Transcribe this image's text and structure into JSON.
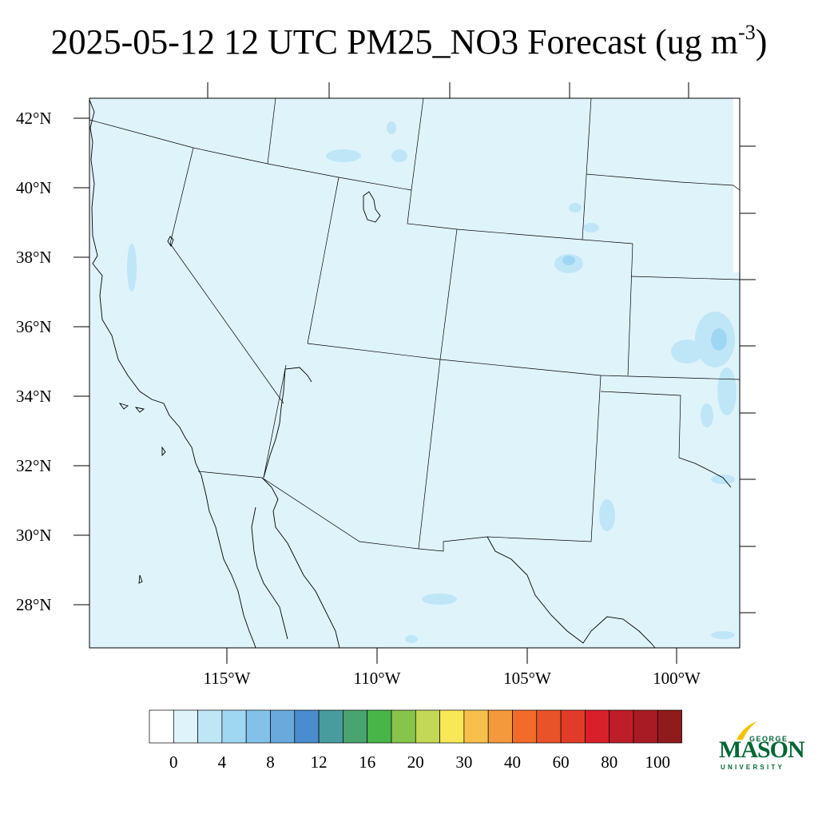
{
  "title": {
    "text": "2025-05-12 12 UTC PM25_NO3 Forecast (ug m",
    "superscript": "-3",
    "close": ")"
  },
  "map": {
    "fill_color": "#dff3fb",
    "lat_labels": [
      "42°N",
      "40°N",
      "38°N",
      "36°N",
      "34°N",
      "32°N",
      "30°N",
      "28°N"
    ],
    "lon_labels": [
      "115°W",
      "110°W",
      "105°W",
      "100°W"
    ]
  },
  "colorbar": {
    "colors": [
      "#ffffff",
      "#dff3fb",
      "#bfe6f7",
      "#9fd7f3",
      "#83c1e8",
      "#69a9dc",
      "#4a8ccd",
      "#489c9e",
      "#49a46f",
      "#47b548",
      "#86c44b",
      "#c2d856",
      "#f8e857",
      "#f7c04b",
      "#f49a3c",
      "#f26b29",
      "#e85329",
      "#e13b29",
      "#d81f2a",
      "#be1d2a",
      "#a81b25",
      "#8f1b1d"
    ],
    "tick_labels": [
      "0",
      "4",
      "8",
      "12",
      "16",
      "20",
      "30",
      "40",
      "60",
      "80",
      "100"
    ]
  },
  "logo": {
    "george": "GEORGE",
    "mason": "MASON",
    "university": "UNIVERSITY",
    "color": "#006633",
    "accent": "#f2c200"
  }
}
